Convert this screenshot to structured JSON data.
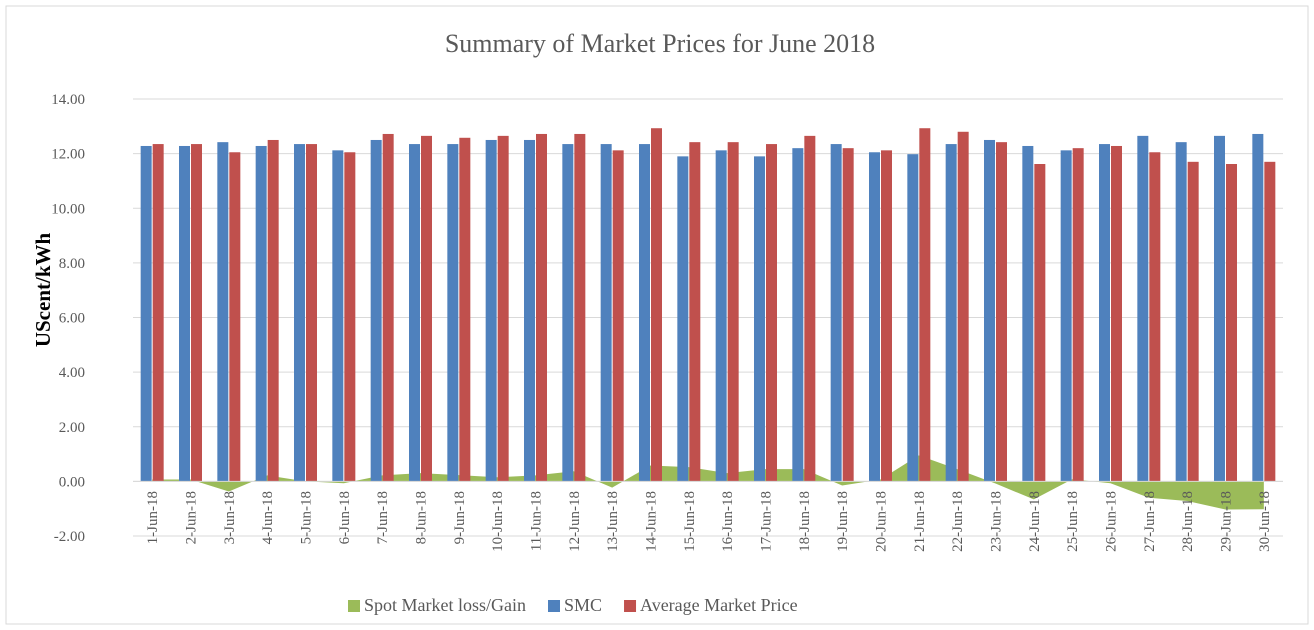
{
  "chart_data": {
    "type": "bar_area_combo",
    "title": "Summary of  Market Prices for June 2018",
    "y_label": "UScent/kWh",
    "categories": [
      "1-Jun-18",
      "2-Jun-18",
      "3-Jun-18",
      "4-Jun-18",
      "5-Jun-18",
      "6-Jun-18",
      "7-Jun-18",
      "8-Jun-18",
      "9-Jun-18",
      "10-Jun-18",
      "11-Jun-18",
      "12-Jun-18",
      "13-Jun-18",
      "14-Jun-18",
      "15-Jun-18",
      "16-Jun-18",
      "17-Jun-18",
      "18-Jun-18",
      "19-Jun-18",
      "20-Jun-18",
      "21-Jun-18",
      "22-Jun-18",
      "23-Jun-18",
      "24-Jun-18",
      "25-Jun-18",
      "26-Jun-18",
      "27-Jun-18",
      "28-Jun-18",
      "29-Jun-18",
      "30-Jun-18"
    ],
    "series": [
      {
        "name": "Spot Market loss/Gain",
        "kind": "area",
        "color": "#9bbb59",
        "values": [
          0.07,
          0.07,
          -0.37,
          0.22,
          0,
          -0.07,
          0.22,
          0.3,
          0.23,
          0.15,
          0.22,
          0.37,
          -0.23,
          0.58,
          0.52,
          0.3,
          0.45,
          0.45,
          -0.15,
          0.07,
          0.95,
          0.45,
          -0.08,
          -0.66,
          0.08,
          -0.07,
          -0.6,
          -0.72,
          -1.03,
          -1.02
        ]
      },
      {
        "name": "SMC",
        "kind": "bar",
        "color": "#4f81bd",
        "values": [
          12.28,
          12.28,
          12.42,
          12.28,
          12.35,
          12.12,
          12.5,
          12.35,
          12.35,
          12.5,
          12.5,
          12.35,
          12.35,
          12.35,
          11.9,
          12.12,
          11.9,
          12.2,
          12.35,
          12.05,
          11.98,
          12.35,
          12.5,
          12.28,
          12.12,
          12.35,
          12.65,
          12.42,
          12.65,
          12.72
        ]
      },
      {
        "name": "Average Market Price",
        "kind": "bar",
        "color": "#c0504d",
        "values": [
          12.35,
          12.35,
          12.05,
          12.5,
          12.35,
          12.05,
          12.72,
          12.65,
          12.58,
          12.65,
          12.72,
          12.72,
          12.12,
          12.93,
          12.42,
          12.42,
          12.35,
          12.65,
          12.2,
          12.12,
          12.93,
          12.8,
          12.42,
          11.62,
          12.2,
          12.28,
          12.05,
          11.7,
          11.62,
          11.7
        ]
      }
    ],
    "ylim": [
      -2,
      14
    ],
    "yticks": [
      {
        "value": -2,
        "label": "-2.00"
      },
      {
        "value": 0,
        "label": "0.00"
      },
      {
        "value": 2,
        "label": "2.00"
      },
      {
        "value": 4,
        "label": "4.00"
      },
      {
        "value": 6,
        "label": "6.00"
      },
      {
        "value": 8,
        "label": "8.00"
      },
      {
        "value": 10,
        "label": "10.00"
      },
      {
        "value": 12,
        "label": "12.00"
      },
      {
        "value": 14,
        "label": "14.00"
      }
    ],
    "grid": true,
    "legend": "bottom"
  }
}
